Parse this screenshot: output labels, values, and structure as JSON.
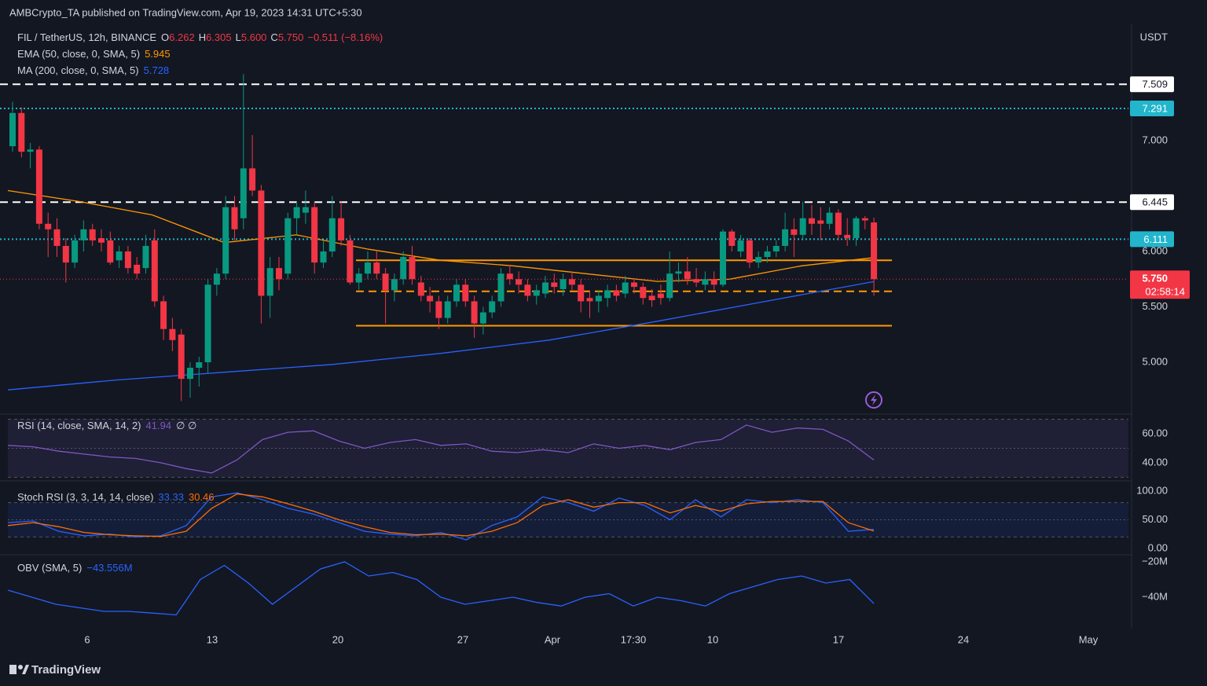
{
  "header": {
    "publisher": "AMBCrypto_TA published on TradingView.com, Apr 19, 2023 14:31 UTC+5:30",
    "currency": "USDT",
    "brand": "TradingView"
  },
  "chart_data": [
    {
      "type": "candlestick",
      "title": "FIL / TetherUS, 12h, BINANCE",
      "up_color": "#089981",
      "down_color": "#f23645",
      "legend_ohlc": [
        {
          "letter": "O",
          "label": "6.262"
        },
        {
          "letter": "H",
          "label": "6.305"
        },
        {
          "letter": "L",
          "label": "5.600"
        },
        {
          "letter": "C",
          "label": "5.750"
        }
      ],
      "change_label": "−0.511 (−8.16%)",
      "ohlc": [
        [
          6.95,
          7.35,
          6.9,
          7.25
        ],
        [
          7.25,
          7.3,
          6.85,
          6.9
        ],
        [
          6.9,
          6.98,
          6.75,
          6.92
        ],
        [
          6.92,
          6.95,
          6.2,
          6.25
        ],
        [
          6.25,
          6.35,
          5.95,
          6.2
        ],
        [
          6.2,
          6.3,
          5.95,
          6.05
        ],
        [
          6.05,
          6.12,
          5.72,
          5.9
        ],
        [
          5.9,
          6.15,
          5.85,
          6.1
        ],
        [
          6.1,
          6.28,
          6.0,
          6.2
        ],
        [
          6.2,
          6.25,
          6.05,
          6.1
        ],
        [
          6.12,
          6.2,
          6.0,
          6.08
        ],
        [
          6.1,
          6.18,
          5.88,
          5.9
        ],
        [
          5.92,
          6.05,
          5.85,
          6.0
        ],
        [
          6.0,
          6.05,
          5.8,
          5.85
        ],
        [
          5.88,
          5.95,
          5.75,
          5.8
        ],
        [
          5.85,
          6.15,
          5.8,
          6.05
        ],
        [
          6.1,
          6.2,
          5.5,
          5.55
        ],
        [
          5.55,
          5.6,
          5.2,
          5.3
        ],
        [
          5.3,
          5.4,
          5.1,
          5.2
        ],
        [
          5.25,
          5.3,
          4.65,
          4.85
        ],
        [
          4.85,
          5.0,
          4.68,
          4.95
        ],
        [
          4.95,
          5.05,
          4.78,
          5.0
        ],
        [
          5.0,
          5.75,
          4.9,
          5.7
        ],
        [
          5.7,
          5.85,
          5.6,
          5.8
        ],
        [
          5.8,
          6.5,
          5.75,
          6.4
        ],
        [
          6.4,
          6.5,
          6.1,
          6.2
        ],
        [
          6.3,
          7.6,
          6.2,
          6.75
        ],
        [
          6.75,
          7.05,
          6.5,
          6.55
        ],
        [
          6.55,
          6.6,
          5.35,
          5.6
        ],
        [
          5.6,
          5.95,
          5.4,
          5.85
        ],
        [
          5.85,
          5.95,
          5.65,
          5.75
        ],
        [
          5.8,
          6.35,
          5.75,
          6.3
        ],
        [
          6.3,
          6.45,
          6.15,
          6.4
        ],
        [
          6.35,
          6.55,
          6.25,
          6.4
        ],
        [
          6.4,
          6.45,
          5.8,
          5.9
        ],
        [
          5.9,
          6.1,
          5.85,
          6.0
        ],
        [
          6.0,
          6.5,
          5.95,
          6.3
        ],
        [
          6.3,
          6.45,
          6.05,
          6.1
        ],
        [
          6.1,
          6.15,
          5.7,
          5.72
        ],
        [
          5.72,
          5.85,
          5.65,
          5.8
        ],
        [
          5.8,
          6.0,
          5.75,
          5.9
        ],
        [
          5.9,
          6.0,
          5.75,
          5.8
        ],
        [
          5.8,
          5.85,
          5.35,
          5.65
        ],
        [
          5.65,
          5.8,
          5.55,
          5.75
        ],
        [
          5.75,
          6.0,
          5.7,
          5.95
        ],
        [
          5.95,
          6.05,
          5.7,
          5.75
        ],
        [
          5.72,
          5.78,
          5.55,
          5.6
        ],
        [
          5.6,
          5.68,
          5.45,
          5.55
        ],
        [
          5.55,
          5.6,
          5.3,
          5.4
        ],
        [
          5.4,
          5.6,
          5.35,
          5.55
        ],
        [
          5.55,
          5.75,
          5.5,
          5.7
        ],
        [
          5.7,
          5.75,
          5.5,
          5.55
        ],
        [
          5.55,
          5.6,
          5.22,
          5.35
        ],
        [
          5.35,
          5.5,
          5.25,
          5.45
        ],
        [
          5.45,
          5.6,
          5.4,
          5.55
        ],
        [
          5.55,
          5.85,
          5.5,
          5.8
        ],
        [
          5.8,
          5.88,
          5.7,
          5.75
        ],
        [
          5.75,
          5.82,
          5.62,
          5.7
        ],
        [
          5.7,
          5.75,
          5.55,
          5.6
        ],
        [
          5.6,
          5.7,
          5.52,
          5.65
        ],
        [
          5.62,
          5.78,
          5.58,
          5.72
        ],
        [
          5.72,
          5.8,
          5.62,
          5.68
        ],
        [
          5.66,
          5.8,
          5.6,
          5.75
        ],
        [
          5.75,
          5.82,
          5.65,
          5.7
        ],
        [
          5.7,
          5.75,
          5.45,
          5.55
        ],
        [
          5.58,
          5.65,
          5.4,
          5.55
        ],
        [
          5.55,
          5.65,
          5.45,
          5.6
        ],
        [
          5.58,
          5.7,
          5.5,
          5.65
        ],
        [
          5.65,
          5.7,
          5.55,
          5.6
        ],
        [
          5.62,
          5.78,
          5.58,
          5.72
        ],
        [
          5.72,
          5.76,
          5.62,
          5.68
        ],
        [
          5.68,
          5.72,
          5.52,
          5.58
        ],
        [
          5.6,
          5.66,
          5.5,
          5.56
        ],
        [
          5.62,
          5.7,
          5.52,
          5.58
        ],
        [
          5.58,
          6.0,
          5.55,
          5.8
        ],
        [
          5.8,
          5.9,
          5.72,
          5.82
        ],
        [
          5.82,
          5.95,
          5.7,
          5.75
        ],
        [
          5.75,
          5.85,
          5.68,
          5.72
        ],
        [
          5.7,
          5.82,
          5.65,
          5.75
        ],
        [
          5.75,
          5.82,
          5.65,
          5.7
        ],
        [
          5.7,
          6.2,
          5.68,
          6.18
        ],
        [
          6.18,
          6.2,
          6.0,
          6.05
        ],
        [
          6.0,
          6.15,
          5.95,
          6.1
        ],
        [
          6.1,
          6.12,
          5.85,
          5.9
        ],
        [
          5.9,
          6.0,
          5.85,
          5.95
        ],
        [
          5.95,
          6.05,
          5.9,
          6.0
        ],
        [
          6.0,
          6.1,
          5.95,
          6.05
        ],
        [
          6.05,
          6.35,
          6.0,
          6.2
        ],
        [
          6.2,
          6.3,
          5.95,
          6.15
        ],
        [
          6.15,
          6.45,
          6.1,
          6.3
        ],
        [
          6.3,
          6.42,
          6.15,
          6.25
        ],
        [
          6.28,
          6.4,
          6.1,
          6.25
        ],
        [
          6.25,
          6.4,
          6.2,
          6.35
        ],
        [
          6.35,
          6.38,
          6.1,
          6.15
        ],
        [
          6.15,
          6.3,
          6.05,
          6.12
        ],
        [
          6.12,
          6.32,
          6.05,
          6.3
        ],
        [
          6.3,
          6.32,
          6.2,
          6.28
        ],
        [
          6.262,
          6.305,
          5.6,
          5.75
        ]
      ],
      "series": [
        {
          "name": "EMA (50, close, 0, SMA, 5)",
          "color": "#ff9800",
          "values": [
            6.55,
            6.45,
            6.33,
            6.08,
            6.15,
            6.02,
            5.92,
            5.87,
            5.8,
            5.73,
            5.75,
            5.87,
            5.945
          ]
        },
        {
          "name": "MA (200, close, 0, SMA, 5)",
          "color": "#2962ff",
          "values": [
            4.75,
            4.84,
            4.91,
            4.98,
            5.08,
            5.2,
            5.37,
            5.55,
            5.728
          ]
        }
      ],
      "levels": [
        {
          "value": 7.509,
          "label": "7.509",
          "color": "#ffffff",
          "label_text_color": "#131722",
          "style": "dashed"
        },
        {
          "value": 7.291,
          "label": "7.291",
          "color": "#22b5cc",
          "label_text_color": "#ffffff",
          "style": "dotted"
        },
        {
          "value": 6.445,
          "label": "6.445",
          "color": "#ffffff",
          "label_text_color": "#131722",
          "style": "dashed"
        },
        {
          "value": 6.111,
          "label": "6.111",
          "color": "#22b5cc",
          "label_text_color": "#ffffff",
          "style": "dotted"
        },
        {
          "value": 5.92,
          "color": "#ff9800",
          "style": "solid"
        },
        {
          "value": 5.64,
          "color": "#ff9800",
          "style": "dashed"
        },
        {
          "value": 5.33,
          "color": "#ff9800",
          "style": "solid"
        }
      ],
      "last_price": {
        "value": 5.75,
        "label": "5.750",
        "countdown": "02:58:14",
        "color": "#f23645"
      },
      "ylim": [
        4.546,
        8.057
      ],
      "yticks": [
        {
          "value": 5,
          "label": "5.000"
        },
        {
          "value": 5.5,
          "label": "5.500"
        },
        {
          "value": 6,
          "label": "6.000"
        },
        {
          "value": 7,
          "label": "7.000"
        }
      ],
      "xticks": [
        "6",
        "13",
        "20",
        "27",
        "Apr",
        "17:30",
        "10",
        "17",
        "24",
        "May"
      ]
    },
    {
      "type": "line",
      "title": "RSI (14, close, SMA, 14, 2)",
      "legend_extra": "∅ ∅",
      "band_color": "rgba(126,87,194,0.12)",
      "series": [
        {
          "color": "#7e57c2",
          "values": [
            52,
            51,
            48,
            46,
            44,
            43,
            40,
            36,
            33,
            42,
            56,
            61,
            62,
            55,
            50,
            54,
            56,
            52,
            53,
            48,
            47,
            49,
            47,
            53,
            50,
            52,
            49,
            54,
            56,
            66,
            61,
            64,
            63,
            55,
            41.94
          ]
        }
      ],
      "bands": [
        70,
        50,
        30
      ],
      "ylim": [
        28.6,
        71.9
      ],
      "yticks": [
        {
          "value": 40,
          "label": "40.00"
        },
        {
          "value": 60,
          "label": "60.00"
        }
      ]
    },
    {
      "type": "line",
      "title": "Stoch RSI (3, 3, 14, 14, close)",
      "band_color": "rgba(41,98,255,0.1)",
      "series": [
        {
          "color": "#2962ff",
          "values": [
            45,
            48,
            30,
            22,
            25,
            20,
            22,
            40,
            90,
            97,
            85,
            70,
            60,
            45,
            30,
            25,
            22,
            28,
            15,
            40,
            55,
            90,
            80,
            65,
            88,
            75,
            50,
            85,
            55,
            85,
            80,
            85,
            80,
            30,
            33.33
          ]
        },
        {
          "color": "#ff6d00",
          "values": [
            40,
            45,
            38,
            28,
            24,
            22,
            21,
            30,
            70,
            95,
            90,
            78,
            65,
            50,
            38,
            28,
            24,
            25,
            22,
            30,
            45,
            75,
            85,
            72,
            80,
            80,
            62,
            75,
            65,
            78,
            82,
            82,
            82,
            45,
            30.46
          ]
        }
      ],
      "bands": [
        80,
        50,
        20
      ],
      "ylim": [
        -9.6,
        113.7
      ],
      "yticks": [
        {
          "value": 0,
          "label": "0.00"
        },
        {
          "value": 50,
          "label": "50.00"
        },
        {
          "value": 100,
          "label": "100.00"
        }
      ]
    },
    {
      "type": "line",
      "title": "OBV (SMA, 5)",
      "series": [
        {
          "color": "#2962ff",
          "value_label": "−43.556M",
          "values": [
            -36,
            -40,
            -44,
            -46,
            -48,
            -48,
            -49,
            -50,
            -30,
            -22,
            -32,
            -44,
            -34,
            -24,
            -20,
            -28,
            -26,
            -30,
            -40,
            -44,
            -42,
            -40,
            -43,
            -45,
            -40,
            -38,
            -45,
            -40,
            -42,
            -45,
            -38,
            -34,
            -30,
            -28,
            -32,
            -30,
            -43.556
          ]
        }
      ],
      "ylim": [
        -57.8,
        -16
      ],
      "yticks": [
        {
          "value": -20,
          "label": "−20M"
        },
        {
          "value": -40,
          "label": "−40M"
        }
      ]
    }
  ]
}
